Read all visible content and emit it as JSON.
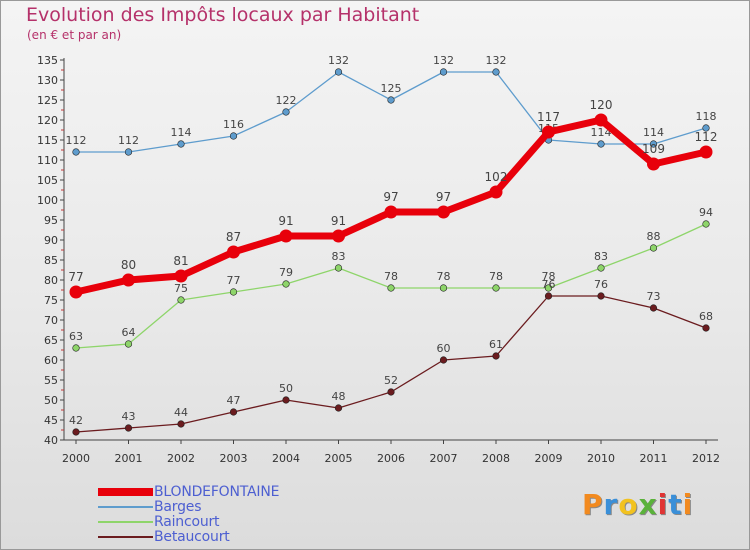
{
  "header": {
    "title": "Evolution des Impôts locaux par Habitant",
    "subtitle": "(en € et par an)"
  },
  "logo": {
    "letters": [
      "P",
      "r",
      "o",
      "x",
      "i",
      "t",
      "i"
    ],
    "colors": [
      "#f28a1f",
      "#3a8fd8",
      "#f2c21f",
      "#5ab23a",
      "#e03434",
      "#3a8fd8",
      "#f28a1f"
    ]
  },
  "chart_data": {
    "type": "line",
    "title": "Evolution des Impôts locaux par Habitant",
    "subtitle": "(en € et par an)",
    "xlabel": "",
    "ylabel": "",
    "categories": [
      "2000",
      "2001",
      "2002",
      "2003",
      "2004",
      "2005",
      "2006",
      "2007",
      "2008",
      "2009",
      "2010",
      "2011",
      "2012"
    ],
    "ylim": [
      40,
      135
    ],
    "ytick_step": 5,
    "grid": false,
    "legend_position": "bottom-left",
    "series": [
      {
        "name": "BLONDEFONTAINE",
        "values": [
          77,
          80,
          81,
          87,
          91,
          91,
          97,
          97,
          102,
          117,
          120,
          109,
          112
        ],
        "color": "#e8000b",
        "emphasis": true
      },
      {
        "name": "Barges",
        "values": [
          112,
          112,
          114,
          116,
          122,
          132,
          125,
          132,
          132,
          115,
          114,
          114,
          118
        ],
        "color": "#5e9ccd",
        "emphasis": false
      },
      {
        "name": "Raincourt",
        "values": [
          63,
          64,
          75,
          77,
          79,
          83,
          78,
          78,
          78,
          78,
          83,
          88,
          94
        ],
        "color": "#8ed56a",
        "emphasis": false
      },
      {
        "name": "Betaucourt",
        "values": [
          42,
          43,
          44,
          47,
          50,
          48,
          52,
          60,
          61,
          76,
          76,
          73,
          68
        ],
        "color": "#6b1c1f",
        "emphasis": false
      }
    ]
  }
}
